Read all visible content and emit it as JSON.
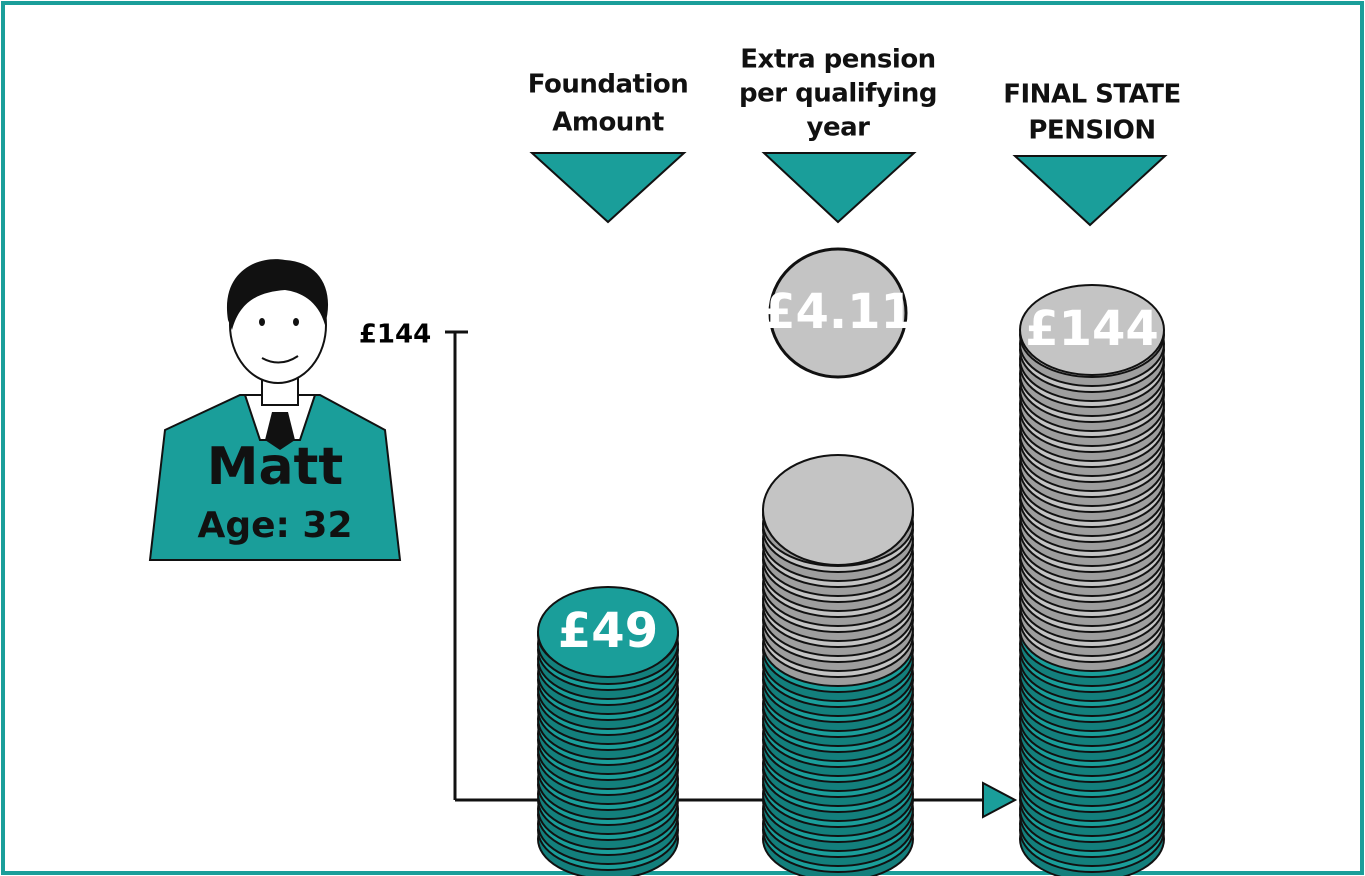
{
  "person": {
    "name": "Matt",
    "age": "Age: 32"
  },
  "axis_label": "£144",
  "columns": [
    {
      "heading": [
        "Foundation",
        "Amount"
      ],
      "coin_label": "£49"
    },
    {
      "heading": [
        "Extra pension",
        "per qualifying",
        "year"
      ],
      "coin_label": "£4.11"
    },
    {
      "heading": [
        "FINAL STATE",
        "PENSION"
      ],
      "coin_label": "£144"
    }
  ]
}
